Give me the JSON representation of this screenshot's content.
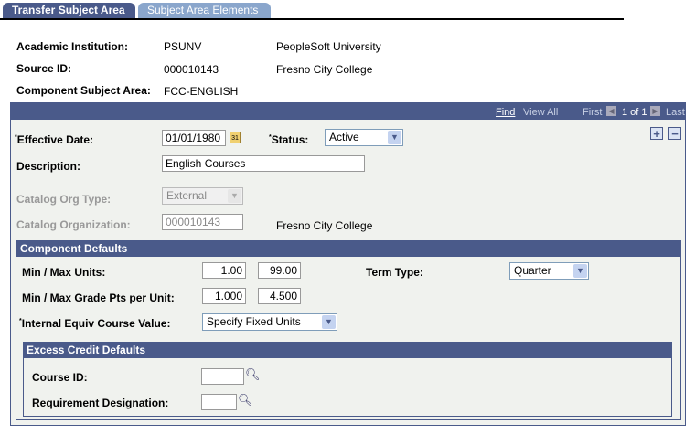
{
  "tabs": [
    {
      "label": "Transfer Subject Area",
      "active": true
    },
    {
      "label": "Subject Area Elements",
      "active": false
    }
  ],
  "header": {
    "institution_label": "Academic Institution:",
    "institution_code": "PSUNV",
    "institution_name": "PeopleSoft University",
    "source_label": "Source ID:",
    "source_id": "000010143",
    "source_name": "Fresno City College",
    "subject_label": "Component Subject Area:",
    "subject_value": "FCC-ENGLISH"
  },
  "nav": {
    "find": "Find",
    "view_all": "View All",
    "first": "First",
    "count": "1 of 1",
    "last": "Last"
  },
  "form": {
    "eff_date_label": "Effective Date:",
    "eff_date": "01/01/1980",
    "status_label": "Status:",
    "status": "Active",
    "desc_label": "Description:",
    "desc": "English Courses",
    "org_type_label": "Catalog Org Type:",
    "org_type": "External",
    "org_label": "Catalog Organization:",
    "org": "000010143",
    "org_name": "Fresno City College"
  },
  "component_defaults": {
    "title": "Component Defaults",
    "units_label": "Min / Max Units:",
    "min_units": "1.00",
    "max_units": "99.00",
    "term_label": "Term Type:",
    "term": "Quarter",
    "grade_label": "Min / Max Grade Pts per Unit:",
    "min_grade": "1.000",
    "max_grade": "4.500",
    "equiv_label": "Internal Equiv Course Value:",
    "equiv": "Specify Fixed Units"
  },
  "excess": {
    "title": "Excess Credit Defaults",
    "course_label": "Course ID:",
    "course": "",
    "req_label": "Requirement Designation:",
    "req": ""
  },
  "colors": {
    "header": "#4a5a8a",
    "panel": "#f0f2ee",
    "tab_inactive": "#8aa6cc"
  }
}
